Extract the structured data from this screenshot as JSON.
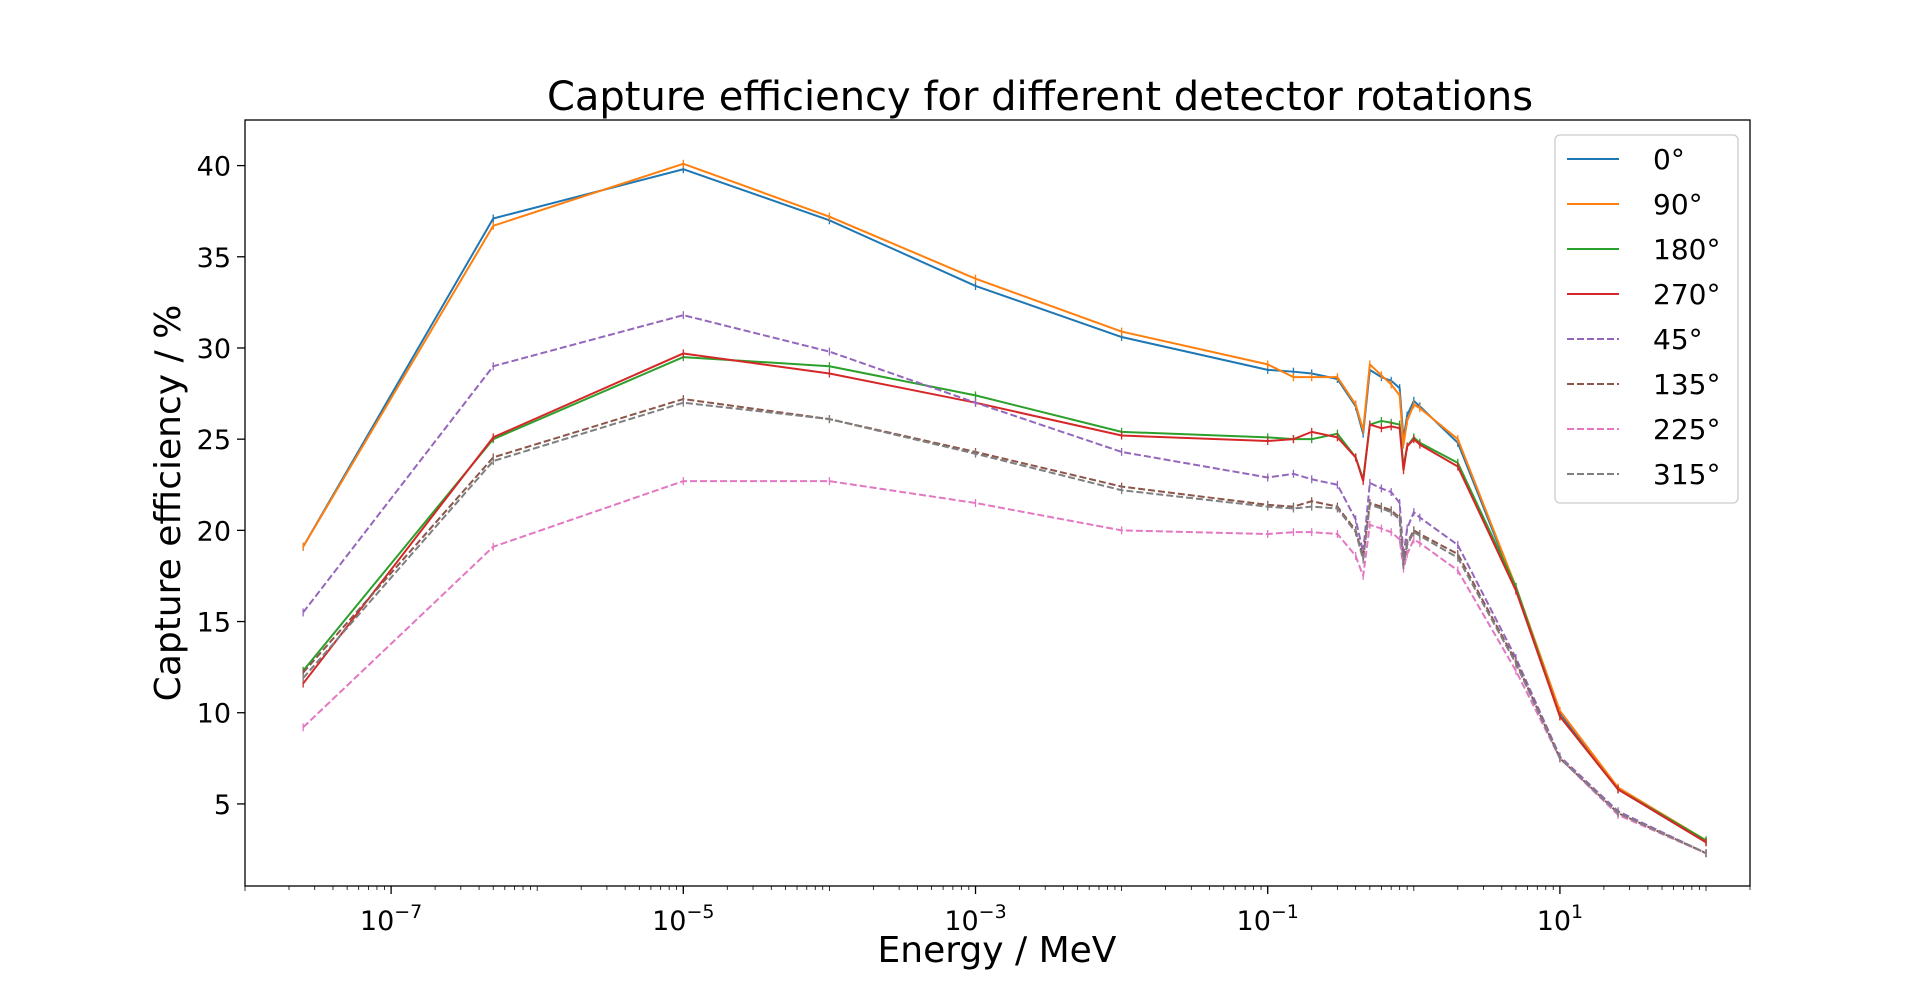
{
  "chart_data": {
    "type": "line",
    "title": "Capture efficiency for different detector rotations",
    "xlabel": "Energy / MeV",
    "ylabel": "Capture efficiency / %",
    "xscale": "log",
    "xlim": [
      1e-08,
      200
    ],
    "ylim": [
      0.5,
      42.5
    ],
    "grid": false,
    "legend_position": "top-right",
    "x_ticks": [
      {
        "value": 1e-07,
        "base": "10",
        "exp": "−7"
      },
      {
        "value": 1e-05,
        "base": "10",
        "exp": "−5"
      },
      {
        "value": 0.001,
        "base": "10",
        "exp": "−3"
      },
      {
        "value": 0.1,
        "base": "10",
        "exp": "−1"
      },
      {
        "value": 10,
        "base": "10",
        "exp": "1"
      }
    ],
    "y_ticks": [
      "5",
      "10",
      "15",
      "20",
      "25",
      "30",
      "35",
      "40"
    ],
    "x": [
      2.5e-08,
      5e-07,
      1e-05,
      0.0001,
      0.001,
      0.01,
      0.1,
      0.15,
      0.2,
      0.3,
      0.4,
      0.45,
      0.5,
      0.6,
      0.7,
      0.8,
      0.85,
      0.9,
      1.0,
      1.1,
      2.0,
      5.0,
      10,
      25,
      100
    ],
    "series": [
      {
        "name": "0°",
        "color": "#1f77b4",
        "dash": false,
        "values": [
          19.1,
          37.1,
          39.8,
          37.0,
          33.4,
          30.6,
          28.8,
          28.7,
          28.6,
          28.3,
          26.8,
          25.3,
          28.8,
          28.4,
          28.2,
          27.8,
          25.0,
          26.3,
          27.1,
          26.8,
          24.8,
          16.8,
          10.0,
          5.8,
          2.9
        ]
      },
      {
        "name": "90°",
        "color": "#ff7f0e",
        "dash": false,
        "values": [
          19.1,
          36.7,
          40.1,
          37.2,
          33.8,
          30.9,
          29.1,
          28.4,
          28.4,
          28.4,
          26.9,
          25.5,
          29.1,
          28.5,
          28.0,
          27.4,
          24.7,
          26.0,
          26.9,
          26.7,
          25.0,
          16.9,
          10.1,
          5.9,
          3.0
        ]
      },
      {
        "name": "180°",
        "color": "#2ca02c",
        "dash": false,
        "values": [
          12.3,
          25.0,
          29.5,
          29.0,
          27.4,
          25.4,
          25.1,
          25.0,
          25.0,
          25.3,
          24.0,
          22.8,
          25.8,
          26.0,
          25.9,
          25.8,
          23.5,
          24.6,
          25.1,
          24.8,
          23.7,
          16.9,
          9.8,
          5.8,
          3.0
        ]
      },
      {
        "name": "270°",
        "color": "#d62728",
        "dash": false,
        "values": [
          11.6,
          25.1,
          29.7,
          28.6,
          27.0,
          25.2,
          24.9,
          25.0,
          25.4,
          25.1,
          24.0,
          22.7,
          25.8,
          25.6,
          25.7,
          25.6,
          23.3,
          24.6,
          25.0,
          24.7,
          23.5,
          16.7,
          9.8,
          5.8,
          2.9
        ]
      },
      {
        "name": "45°",
        "color": "#9467bd",
        "dash": true,
        "values": [
          15.5,
          29.0,
          31.8,
          29.8,
          27.0,
          24.3,
          22.9,
          23.1,
          22.8,
          22.5,
          20.6,
          18.8,
          22.6,
          22.3,
          22.1,
          21.5,
          18.6,
          20.1,
          21.0,
          20.7,
          19.2,
          13.0,
          7.6,
          4.6,
          2.3
        ]
      },
      {
        "name": "135°",
        "color": "#8c564b",
        "dash": true,
        "values": [
          12.2,
          24.0,
          27.2,
          26.1,
          24.3,
          22.4,
          21.4,
          21.3,
          21.6,
          21.3,
          20.0,
          18.5,
          21.5,
          21.3,
          21.1,
          20.7,
          18.2,
          19.3,
          20.0,
          19.8,
          18.7,
          12.8,
          7.5,
          4.5,
          2.3
        ]
      },
      {
        "name": "225°",
        "color": "#e377c2",
        "dash": true,
        "values": [
          9.2,
          19.1,
          22.7,
          22.7,
          21.5,
          20.0,
          19.8,
          19.9,
          19.9,
          19.8,
          18.6,
          17.5,
          20.3,
          20.1,
          19.9,
          19.5,
          17.9,
          18.7,
          19.5,
          19.3,
          17.8,
          12.3,
          7.5,
          4.4,
          2.3
        ]
      },
      {
        "name": "315°",
        "color": "#7f7f7f",
        "dash": true,
        "values": [
          11.9,
          23.8,
          27.0,
          26.1,
          24.2,
          22.2,
          21.3,
          21.2,
          21.3,
          21.2,
          19.9,
          18.4,
          21.4,
          21.2,
          21.0,
          20.6,
          18.1,
          19.2,
          19.9,
          19.7,
          18.5,
          12.7,
          7.5,
          4.5,
          2.3
        ]
      }
    ]
  }
}
